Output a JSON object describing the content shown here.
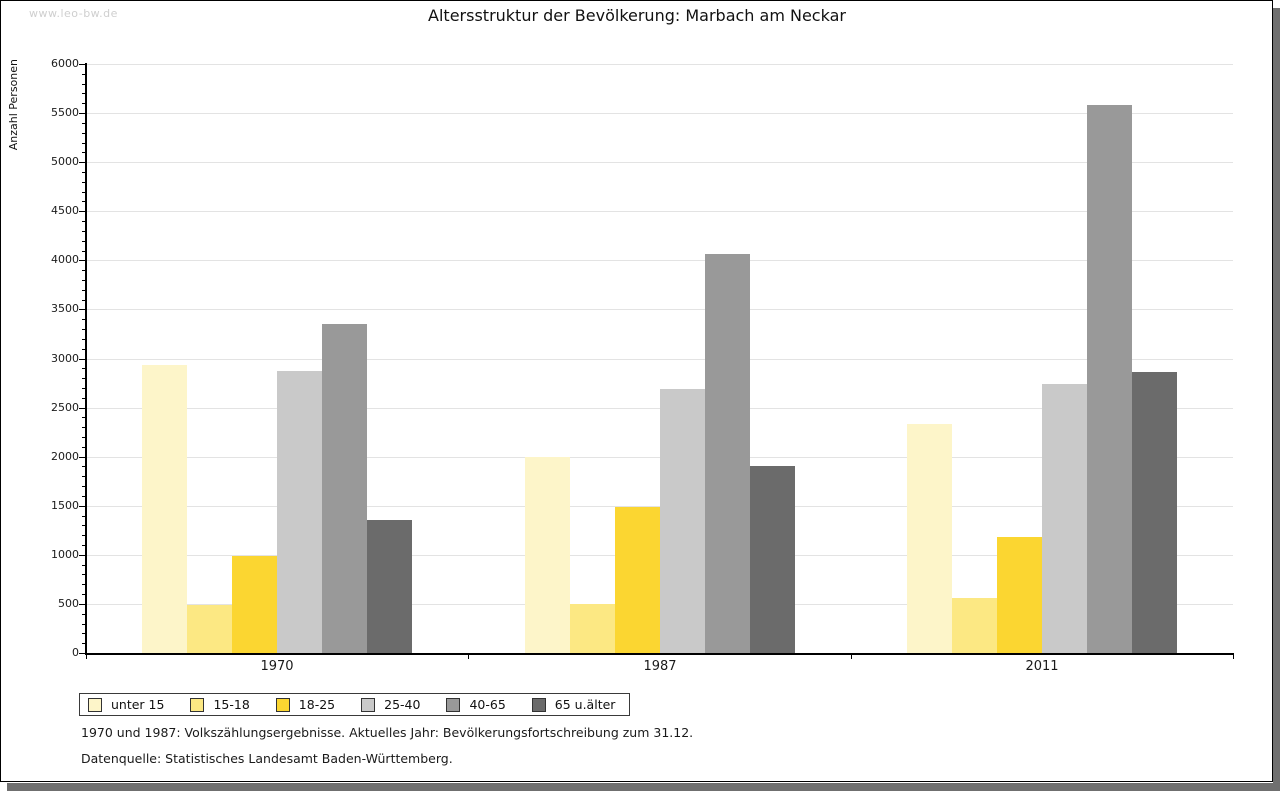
{
  "watermark": "www.leo-bw.de",
  "title": "Altersstruktur der Bevölkerung: Marbach am Neckar",
  "footnote_line1": "1970 und 1987: Volkszählungsergebnisse. Aktuelles Jahr: Bevölkerungsfortschreibung zum 31.12.",
  "footnote_line2": "Datenquelle: Statistisches Landesamt Baden-Württemberg.",
  "shadow_color": "#6f6f6f",
  "gridline_color": "#e3e3e3",
  "chart_data": {
    "type": "bar",
    "title": "Altersstruktur der Bevölkerung: Marbach am Neckar",
    "xlabel": "",
    "ylabel": "Anzahl Personen",
    "categories": [
      "1970",
      "1987",
      "2011"
    ],
    "series": [
      {
        "name": "unter 15",
        "color": "#FDF5C9",
        "values": [
          2930,
          2000,
          2330
        ]
      },
      {
        "name": "15-18",
        "color": "#FCE883",
        "values": [
          490,
          500,
          560
        ]
      },
      {
        "name": "18-25",
        "color": "#FBD631",
        "values": [
          990,
          1490,
          1180
        ]
      },
      {
        "name": "25-40",
        "color": "#C9C9C9",
        "values": [
          2870,
          2690,
          2740
        ]
      },
      {
        "name": "40-65",
        "color": "#999999",
        "values": [
          3350,
          4060,
          5580
        ]
      },
      {
        "name": "65 u.älter",
        "color": "#6B6B6B",
        "values": [
          1350,
          1900,
          2860
        ]
      }
    ],
    "ylim": [
      0,
      6000
    ],
    "ytick_step": 500,
    "minor_tick_step": 100,
    "grid": true,
    "legend_position": "bottom-left"
  }
}
